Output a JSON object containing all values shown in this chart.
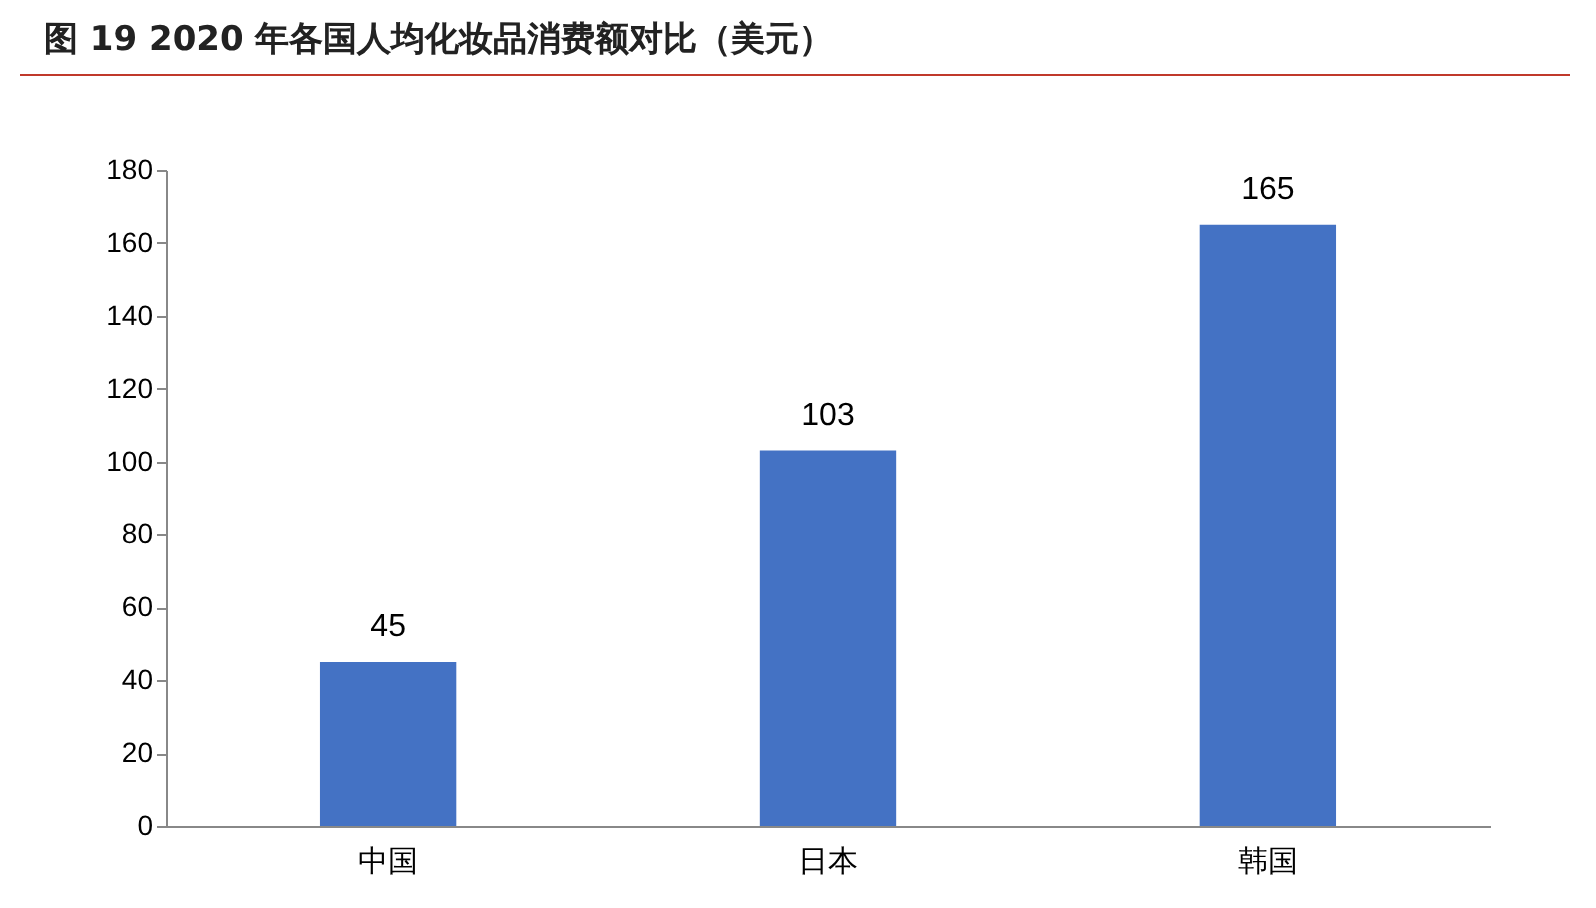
{
  "chart_data": {
    "type": "bar",
    "title": "图 19 2020 年各国人均化妆品消费额对比（美元）",
    "categories": [
      "中国",
      "日本",
      "韩国"
    ],
    "values": [
      45,
      103,
      165
    ],
    "color": "#4472c4",
    "ylim": [
      0,
      180
    ],
    "yticks": [
      0,
      20,
      40,
      60,
      80,
      100,
      120,
      140,
      160,
      180
    ],
    "grid": false,
    "data_labels": true
  }
}
